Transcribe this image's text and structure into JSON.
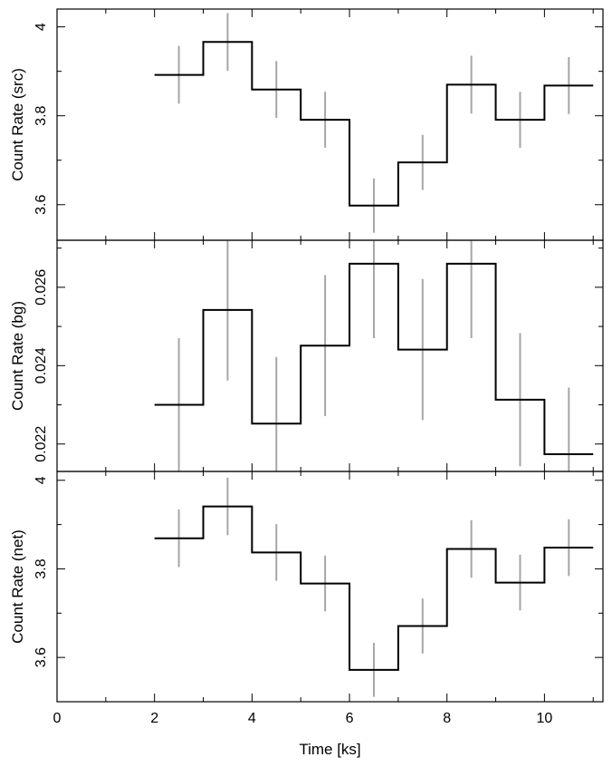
{
  "chart_data": [
    {
      "type": "line",
      "step": true,
      "ylabel": "Count Rate (src)",
      "yticks": [
        3.6,
        3.8,
        4
      ],
      "ytick_labels": [
        "3.6",
        "3.8",
        "4"
      ],
      "ylim": [
        3.52,
        4.04
      ],
      "xlim": [
        0,
        11.2
      ],
      "bins": [
        [
          2,
          3
        ],
        [
          3,
          4
        ],
        [
          4,
          5
        ],
        [
          5,
          6
        ],
        [
          6,
          7
        ],
        [
          7,
          8
        ],
        [
          8,
          9
        ],
        [
          9,
          10
        ],
        [
          10,
          11
        ]
      ],
      "x": [
        2.5,
        3.5,
        4.5,
        5.5,
        6.5,
        7.5,
        8.5,
        9.5,
        10.5
      ],
      "values": [
        3.892,
        3.966,
        3.859,
        3.791,
        3.598,
        3.695,
        3.87,
        3.791,
        3.868
      ],
      "errors": [
        0.065,
        0.065,
        0.064,
        0.063,
        0.061,
        0.062,
        0.065,
        0.063,
        0.064
      ],
      "line_color": "#000000",
      "error_color": "#a6a6a6"
    },
    {
      "type": "line",
      "step": true,
      "ylabel": "Count Rate (bg)",
      "yticks": [
        0.022,
        0.024,
        0.026
      ],
      "ytick_labels": [
        "0.022",
        "0.024",
        "0.026"
      ],
      "ylim": [
        0.0213,
        0.0272
      ],
      "xlim": [
        0,
        11.2
      ],
      "bins": [
        [
          2,
          3
        ],
        [
          3,
          4
        ],
        [
          4,
          5
        ],
        [
          5,
          6
        ],
        [
          6,
          7
        ],
        [
          7,
          8
        ],
        [
          8,
          9
        ],
        [
          9,
          10
        ],
        [
          10,
          11
        ]
      ],
      "x": [
        2.5,
        3.5,
        4.5,
        5.5,
        6.5,
        7.5,
        8.5,
        9.5,
        10.5
      ],
      "values": [
        0.023,
        0.02542,
        0.02252,
        0.02451,
        0.0266,
        0.02441,
        0.0266,
        0.02313,
        0.02174
      ],
      "errors": [
        0.0017,
        0.0018,
        0.0017,
        0.0018,
        0.0019,
        0.0018,
        0.0019,
        0.0017,
        0.0017
      ],
      "line_color": "#000000",
      "error_color": "#a6a6a6"
    },
    {
      "type": "line",
      "step": true,
      "ylabel": "Count Rate (net)",
      "xlabel": "Time [ks]",
      "yticks": [
        3.6,
        3.8,
        4
      ],
      "ytick_labels": [
        "3.6",
        "3.8",
        "4"
      ],
      "ylim": [
        3.5,
        4.02
      ],
      "xlim": [
        0,
        11.2
      ],
      "xticks": [
        0,
        2,
        4,
        6,
        8,
        10
      ],
      "xtick_labels": [
        "0",
        "2",
        "4",
        "6",
        "8",
        "10"
      ],
      "bins": [
        [
          2,
          3
        ],
        [
          3,
          4
        ],
        [
          4,
          5
        ],
        [
          5,
          6
        ],
        [
          6,
          7
        ],
        [
          7,
          8
        ],
        [
          8,
          9
        ],
        [
          9,
          10
        ],
        [
          10,
          11
        ]
      ],
      "x": [
        2.5,
        3.5,
        4.5,
        5.5,
        6.5,
        7.5,
        8.5,
        9.5,
        10.5
      ],
      "values": [
        3.869,
        3.941,
        3.837,
        3.767,
        3.572,
        3.671,
        3.845,
        3.769,
        3.848
      ],
      "errors": [
        0.065,
        0.065,
        0.064,
        0.063,
        0.061,
        0.062,
        0.065,
        0.063,
        0.064
      ],
      "line_color": "#000000",
      "error_color": "#a6a6a6"
    }
  ]
}
